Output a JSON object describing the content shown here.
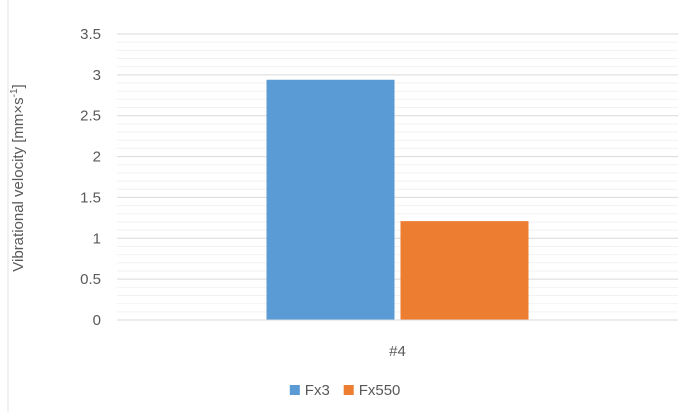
{
  "chart_data": {
    "type": "bar",
    "categories": [
      "#4"
    ],
    "series": [
      {
        "name": "Fx3",
        "values": [
          2.94
        ],
        "color": "#5B9BD5"
      },
      {
        "name": "Fx550",
        "values": [
          1.21
        ],
        "color": "#ED7D31"
      }
    ],
    "ylabel_main": "Vibrational velocity [mm×s",
    "ylabel_sup": "-1",
    "ylabel_end": "]",
    "ylim": [
      0,
      3.5
    ],
    "yticks": [
      "0",
      "0.5",
      "1",
      "1.5",
      "2",
      "2.5",
      "3",
      "3.5"
    ],
    "grid": true,
    "legend": "bottom"
  }
}
